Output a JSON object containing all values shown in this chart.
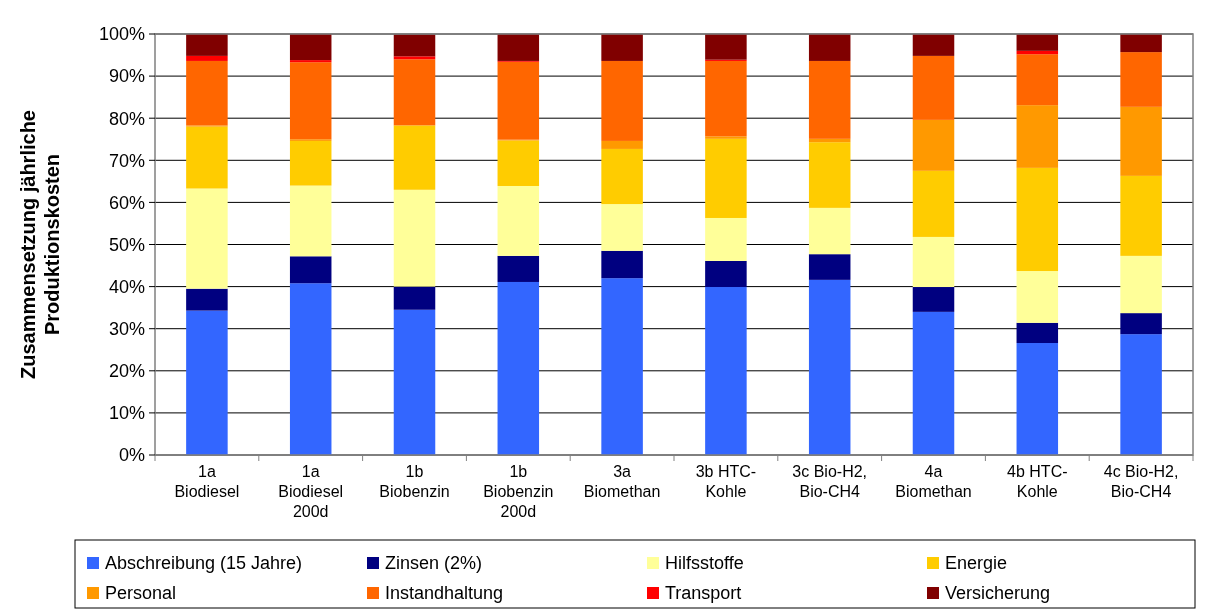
{
  "chart_data": {
    "type": "bar",
    "stacked": true,
    "ylabel": "Zusammensetzung jährliche\nProduktionskosten",
    "categories": [
      "1a\nBiodiesel",
      "1a\nBiodiesel\n200d",
      "1b\nBiobenzin",
      "1b\nBiobenzin\n200d",
      "3a\nBiomethan",
      "3b HTC-\nKohle",
      "3c Bio-H2,\nBio-CH4",
      "4a\nBiomethan",
      "4b HTC-\nKohle",
      "4c Bio-H2,\nBio-CH4"
    ],
    "series": [
      {
        "name": "Abschreibung (15 Jahre)",
        "color": "#3366ff",
        "values": [
          34.3,
          40.8,
          34.5,
          41.1,
          42.0,
          39.9,
          41.6,
          34.0,
          26.6,
          28.7
        ]
      },
      {
        "name": "Zinsen (2%)",
        "color": "#000080",
        "values": [
          5.2,
          6.4,
          5.5,
          6.2,
          6.5,
          6.2,
          6.1,
          5.9,
          4.8,
          5.0
        ]
      },
      {
        "name": "Hilfsstoffe",
        "color": "#ffff99",
        "values": [
          23.8,
          16.8,
          23.0,
          16.6,
          11.1,
          10.2,
          11.0,
          11.9,
          12.3,
          13.6
        ]
      },
      {
        "name": "Energie",
        "color": "#ffcc00",
        "values": [
          14.7,
          10.6,
          15.3,
          10.8,
          13.1,
          18.8,
          15.6,
          15.7,
          24.5,
          19.0
        ]
      },
      {
        "name": "Personal",
        "color": "#ff9900",
        "values": [
          0.3,
          0.4,
          null,
          0.2,
          1.9,
          0.6,
          0.8,
          12.1,
          14.9,
          16.4
        ]
      },
      {
        "name": "Instandhaltung",
        "color": "#ff6600",
        "values": [
          15.3,
          18.3,
          15.7,
          18.5,
          19.0,
          17.9,
          18.5,
          15.2,
          12.1,
          13.0
        ]
      },
      {
        "name": "Transport",
        "color": "#ff0000",
        "values": [
          1.2,
          0.5,
          0.7,
          0.2,
          0,
          0.3,
          0,
          0,
          0.8,
          0
        ]
      },
      {
        "name": "Versicherung",
        "color": "#800000",
        "values": [
          5.2,
          6.2,
          5.2,
          6.4,
          6.4,
          6.1,
          6.4,
          5.2,
          4.0,
          4.3
        ]
      }
    ],
    "ylim": [
      0,
      100
    ],
    "yticks": [
      {
        "value": 0,
        "label": "0%"
      },
      {
        "value": 10,
        "label": "10%"
      },
      {
        "value": 20,
        "label": "20%"
      },
      {
        "value": 30,
        "label": "30%"
      },
      {
        "value": 40,
        "label": "40%"
      },
      {
        "value": 50,
        "label": "50%"
      },
      {
        "value": 60,
        "label": "60%"
      },
      {
        "value": 70,
        "label": "70%"
      },
      {
        "value": 80,
        "label": "80%"
      },
      {
        "value": 90,
        "label": "90%"
      },
      {
        "value": 100,
        "label": "100%"
      }
    ],
    "grid": "y",
    "legend": "bottom"
  }
}
